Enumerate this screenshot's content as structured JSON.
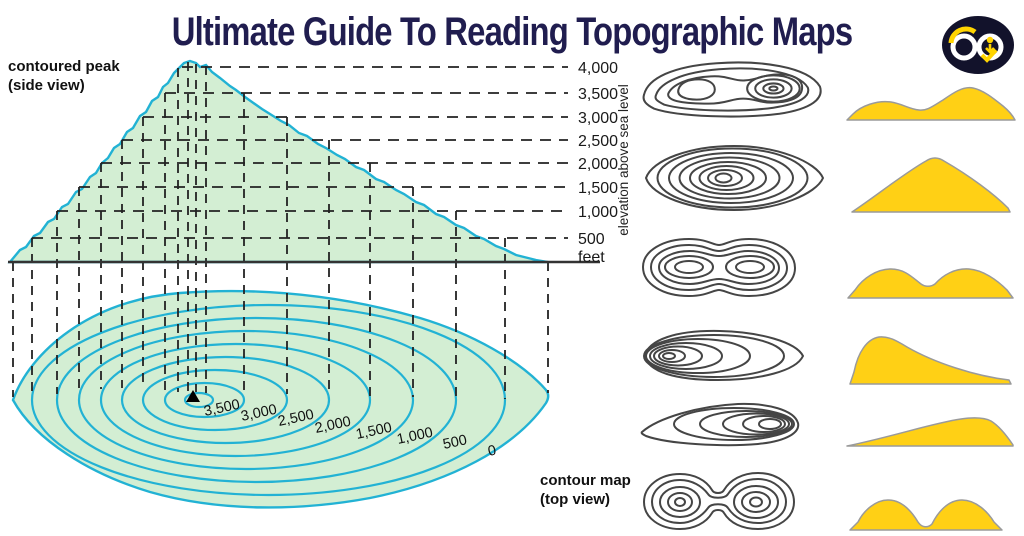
{
  "title": "Ultimate Guide To Reading Topographic Maps",
  "labels": {
    "side_view_line1": "contoured peak",
    "side_view_line2": "(side view)",
    "top_view_line1": "contour map",
    "top_view_line2": "(top view)",
    "axis": "elevation above sea level",
    "unit": "feet"
  },
  "elevation_scale": [
    "4,000",
    "3,500",
    "3,000",
    "2,500",
    "2,000",
    "1,500",
    "1,000",
    "500"
  ],
  "contour_labels": [
    "3,500",
    "3,000",
    "2,500",
    "2,000",
    "1,500",
    "1,000",
    "500",
    "0"
  ],
  "icons": {
    "logo": "infinity-download-logo",
    "peak_marker": "summit-triangle"
  },
  "colors": {
    "title": "#201d4f",
    "fill": "#d3eed3",
    "line": "#22b2d4",
    "dash": "#222222",
    "mini": "#454545",
    "gold": "#ffd015",
    "goldline": "#9a9a9a",
    "logobg": "#12122b",
    "logoacc": "#ffd400"
  }
}
